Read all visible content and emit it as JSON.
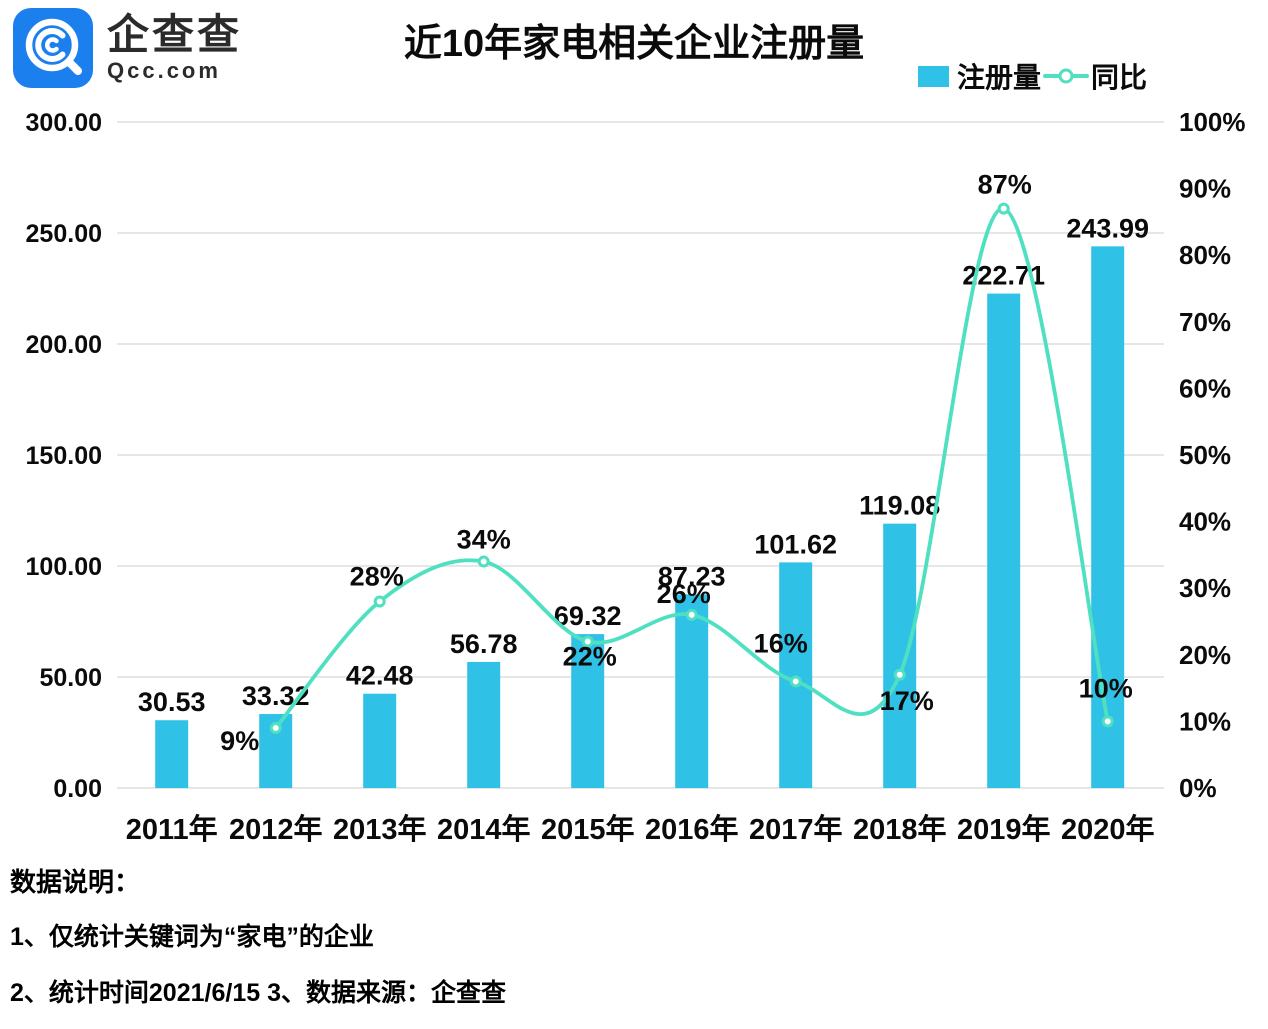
{
  "brand": {
    "name": "企查查",
    "domain": "Qcc.com"
  },
  "title": "近10年家电相关企业注册量",
  "legend": {
    "bar": "注册量",
    "line": "同比"
  },
  "footer": {
    "heading": "数据说明：",
    "note1": "1、仅统计关键词为“家电”的企业",
    "note2": "2、统计时间2021/6/15   3、数据来源：企查查"
  },
  "colors": {
    "bar": "#2fc2e6",
    "line": "#4fe0c2",
    "logo_blue": "#1b80ee",
    "grid": "#e2e2e2",
    "text": "#0b0b0b"
  },
  "chart_data": {
    "type": "bar+line",
    "title": "近10年家电相关企业注册量",
    "categories": [
      "2011年",
      "2012年",
      "2013年",
      "2014年",
      "2015年",
      "2016年",
      "2017年",
      "2018年",
      "2019年",
      "2020年"
    ],
    "series": [
      {
        "name": "注册量",
        "type": "bar",
        "axis": "left",
        "values": [
          30.53,
          33.32,
          42.48,
          56.78,
          69.32,
          87.23,
          101.62,
          119.08,
          222.71,
          243.99
        ],
        "value_labels": [
          "30.53",
          "33.32",
          "42.48",
          "56.78",
          "69.32",
          "87.23",
          "101.62",
          "119.08",
          "222.71",
          "243.99"
        ]
      },
      {
        "name": "同比",
        "type": "line",
        "axis": "right",
        "values": [
          null,
          9,
          28,
          34,
          22,
          26,
          16,
          17,
          87,
          10
        ],
        "value_labels": [
          "",
          "9%",
          "28%",
          "34%",
          "22%",
          "26%",
          "16%",
          "17%",
          "87%",
          "10%"
        ],
        "label_offsets": [
          [
            0,
            0
          ],
          [
            -36,
            13
          ],
          [
            -3,
            -25
          ],
          [
            0,
            -22
          ],
          [
            2,
            15
          ],
          [
            -8,
            -21
          ],
          [
            -15,
            -38
          ],
          [
            7,
            26
          ],
          [
            1,
            -24
          ],
          [
            -2,
            -33
          ]
        ]
      }
    ],
    "left_axis": {
      "min": 0,
      "max": 300,
      "step": 50,
      "tick_labels": [
        "0.00",
        "50.00",
        "100.00",
        "150.00",
        "200.00",
        "250.00",
        "300.00"
      ]
    },
    "right_axis": {
      "min": 0,
      "max": 100,
      "step": 10,
      "tick_labels": [
        "0%",
        "10%",
        "20%",
        "30%",
        "40%",
        "50%",
        "60%",
        "70%",
        "80%",
        "90%",
        "100%"
      ]
    },
    "grid": true,
    "legend_position": "top-right",
    "smooth_line": true
  }
}
